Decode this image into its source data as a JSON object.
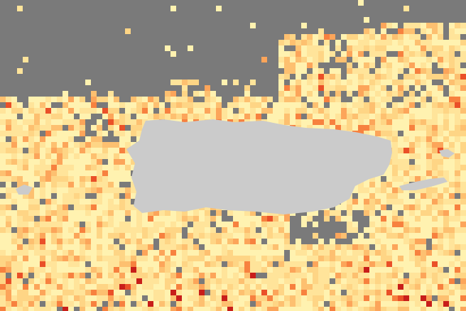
{
  "map": {
    "colors": {
      "no_data": "#7a7a7a",
      "land": "#cbcbcb",
      "scale": [
        "#fff2b0",
        "#ffe49a",
        "#fed585",
        "#fdc070",
        "#fca55a",
        "#f7813f",
        "#ea5028",
        "#c81e1a"
      ]
    }
  }
}
